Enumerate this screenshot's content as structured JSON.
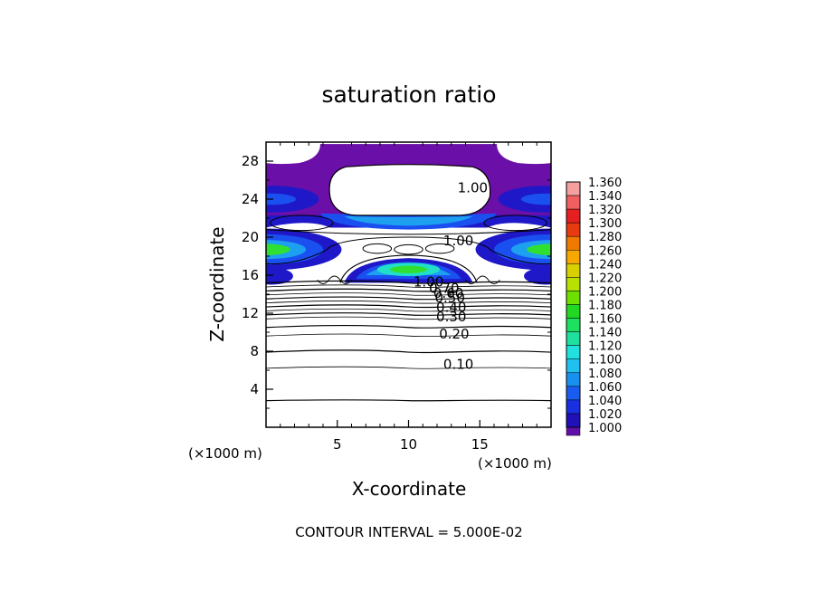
{
  "chart_data": {
    "type": "heatmap",
    "title": "saturation ratio",
    "xlabel": "X-coordinate",
    "ylabel": "Z-coordinate",
    "xunit_left": "(×1000 m)",
    "xunit_right": "(×1000 m)",
    "xlim": [
      0,
      20
    ],
    "ylim": [
      0,
      30
    ],
    "xticks": [
      5,
      10,
      15
    ],
    "yticks": [
      4,
      8,
      12,
      16,
      20,
      24,
      28
    ],
    "contour_interval_text": "CONTOUR INTERVAL = 5.000E-02",
    "contour_labels": [
      {
        "text": "1.00",
        "x": 14.5,
        "z": 25.2
      },
      {
        "text": "1.00",
        "x": 13.5,
        "z": 19.6
      },
      {
        "text": "1.00",
        "x": 11.4,
        "z": 15.3
      },
      {
        "text": "0.70",
        "x": 12.5,
        "z": 14.6
      },
      {
        "text": "0.60",
        "x": 12.8,
        "z": 14.1
      },
      {
        "text": "0.50",
        "x": 12.9,
        "z": 13.6
      },
      {
        "text": "0.40",
        "x": 13.0,
        "z": 12.6
      },
      {
        "text": "0.30",
        "x": 13.0,
        "z": 11.6
      },
      {
        "text": "0.20",
        "x": 13.2,
        "z": 9.8
      },
      {
        "text": "0.10",
        "x": 13.5,
        "z": 6.6
      }
    ],
    "colorbar": {
      "levels": [
        "1.360",
        "1.340",
        "1.320",
        "1.300",
        "1.280",
        "1.260",
        "1.240",
        "1.220",
        "1.200",
        "1.180",
        "1.160",
        "1.140",
        "1.120",
        "1.100",
        "1.080",
        "1.060",
        "1.040",
        "1.020",
        "1.000"
      ],
      "colors": [
        "#f4a0a0",
        "#f06060",
        "#e62020",
        "#e83a10",
        "#f07a00",
        "#f6a800",
        "#d8d000",
        "#b8e000",
        "#6ee000",
        "#22d822",
        "#1ee060",
        "#20e0a0",
        "#20e0e0",
        "#20c0f0",
        "#1890f0",
        "#1a5cf0",
        "#1830e0",
        "#2010b8",
        "#6010a8"
      ]
    },
    "field_colors": {
      "cap": "#6a0fa8",
      "band_dark": "#1e18c8",
      "band_mid": "#1a50f0",
      "band_light": "#1ea0f0",
      "core_cyan": "#22e0c8",
      "core_green": "#30e030"
    }
  }
}
